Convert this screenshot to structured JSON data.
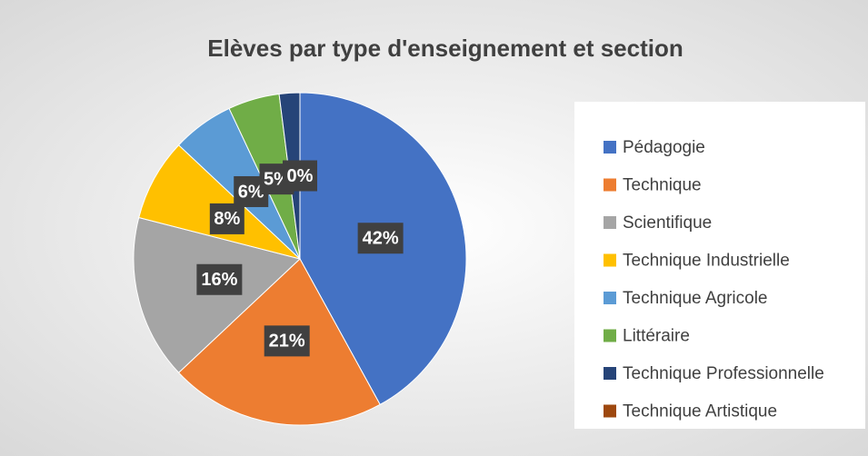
{
  "chart_data": {
    "type": "pie",
    "title": "Elèves par type d'enseignement et section",
    "categories": [
      "Pédagogie",
      "Technique",
      "Scientifique",
      "Technique Industrielle",
      "Technique Agricole",
      "Littéraire",
      "Technique Professionnelle",
      "Technique Artistique"
    ],
    "values": [
      42,
      21,
      16,
      8,
      6,
      5,
      2,
      0
    ],
    "value_labels": [
      "42%",
      "21%",
      "16%",
      "8%",
      "6%",
      "5%",
      null,
      "0%"
    ],
    "colors": [
      "#4472c4",
      "#ed7d31",
      "#a5a5a5",
      "#ffc000",
      "#5b9bd5",
      "#70ad47",
      "#264478",
      "#9e480e"
    ],
    "legend": "right"
  }
}
